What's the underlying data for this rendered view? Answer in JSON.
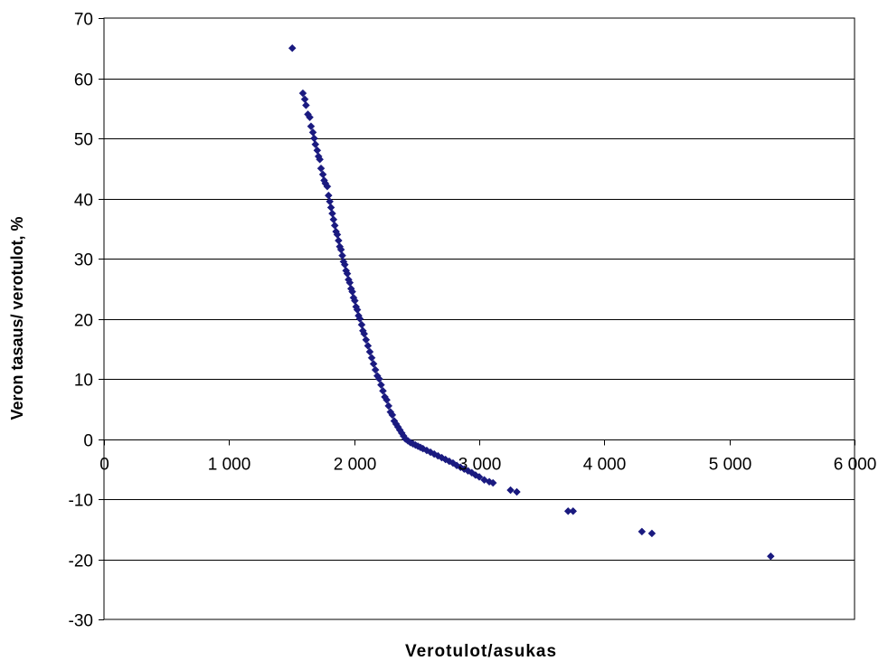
{
  "chart_data": {
    "type": "scatter",
    "title": "",
    "xlabel": "Verotulot/asukas",
    "ylabel": "Veron tasaus/ verotulot, %",
    "xlim": [
      0,
      6000
    ],
    "ylim": [
      -30,
      70
    ],
    "x_ticks": [
      0,
      1000,
      2000,
      3000,
      4000,
      5000,
      6000
    ],
    "x_tick_labels": [
      "0",
      "1 000",
      "2 000",
      "3 000",
      "4 000",
      "5 000",
      "6 000"
    ],
    "y_ticks": [
      -30,
      -20,
      -10,
      0,
      10,
      20,
      30,
      40,
      50,
      60,
      70
    ],
    "y_tick_labels": [
      "-30",
      "-20",
      "-10",
      "0",
      "10",
      "20",
      "30",
      "40",
      "50",
      "60",
      "70"
    ],
    "grid": "horizontal",
    "legend": "none",
    "marker": "diamond",
    "marker_color": "#1a1a80",
    "x_axis_crosses_at": 0,
    "series": [
      {
        "values": [
          [
            1505,
            65.0
          ],
          [
            1590,
            57.5
          ],
          [
            1605,
            56.5
          ],
          [
            1615,
            55.5
          ],
          [
            1630,
            54.0
          ],
          [
            1645,
            53.5
          ],
          [
            1655,
            52.0
          ],
          [
            1670,
            51.0
          ],
          [
            1680,
            50.0
          ],
          [
            1690,
            49.0
          ],
          [
            1705,
            48.0
          ],
          [
            1715,
            47.0
          ],
          [
            1725,
            46.5
          ],
          [
            1735,
            45.0
          ],
          [
            1750,
            44.0
          ],
          [
            1760,
            43.0
          ],
          [
            1770,
            42.5
          ],
          [
            1785,
            42.0
          ],
          [
            1795,
            40.5
          ],
          [
            1805,
            39.5
          ],
          [
            1815,
            38.5
          ],
          [
            1825,
            37.5
          ],
          [
            1835,
            36.5
          ],
          [
            1845,
            35.5
          ],
          [
            1855,
            34.5
          ],
          [
            1865,
            34.0
          ],
          [
            1875,
            33.0
          ],
          [
            1885,
            32.0
          ],
          [
            1895,
            31.5
          ],
          [
            1905,
            30.5
          ],
          [
            1915,
            29.5
          ],
          [
            1925,
            29.0
          ],
          [
            1935,
            28.0
          ],
          [
            1945,
            27.5
          ],
          [
            1955,
            26.5
          ],
          [
            1965,
            26.0
          ],
          [
            1975,
            25.0
          ],
          [
            1985,
            24.5
          ],
          [
            1995,
            23.5
          ],
          [
            2005,
            23.0
          ],
          [
            2015,
            22.0
          ],
          [
            2025,
            21.5
          ],
          [
            2035,
            20.5
          ],
          [
            2045,
            20.0
          ],
          [
            2060,
            19.0
          ],
          [
            2070,
            18.0
          ],
          [
            2080,
            17.5
          ],
          [
            2095,
            16.5
          ],
          [
            2110,
            15.5
          ],
          [
            2125,
            14.5
          ],
          [
            2140,
            13.5
          ],
          [
            2155,
            12.5
          ],
          [
            2170,
            11.5
          ],
          [
            2185,
            10.5
          ],
          [
            2200,
            10.0
          ],
          [
            2215,
            9.0
          ],
          [
            2230,
            8.0
          ],
          [
            2245,
            7.0
          ],
          [
            2260,
            6.5
          ],
          [
            2275,
            5.5
          ],
          [
            2290,
            4.5
          ],
          [
            2305,
            4.0
          ],
          [
            2320,
            3.0
          ],
          [
            2335,
            2.5
          ],
          [
            2350,
            2.0
          ],
          [
            2365,
            1.5
          ],
          [
            2380,
            1.0
          ],
          [
            2395,
            0.5
          ],
          [
            2410,
            0.0
          ],
          [
            2430,
            -0.3
          ],
          [
            2450,
            -0.6
          ],
          [
            2470,
            -0.8
          ],
          [
            2490,
            -1.0
          ],
          [
            2510,
            -1.2
          ],
          [
            2530,
            -1.4
          ],
          [
            2550,
            -1.6
          ],
          [
            2580,
            -1.9
          ],
          [
            2610,
            -2.2
          ],
          [
            2640,
            -2.5
          ],
          [
            2670,
            -2.8
          ],
          [
            2700,
            -3.1
          ],
          [
            2730,
            -3.4
          ],
          [
            2760,
            -3.7
          ],
          [
            2790,
            -4.0
          ],
          [
            2820,
            -4.4
          ],
          [
            2850,
            -4.7
          ],
          [
            2880,
            -5.0
          ],
          [
            2910,
            -5.3
          ],
          [
            2940,
            -5.6
          ],
          [
            2970,
            -6.0
          ],
          [
            3000,
            -6.3
          ],
          [
            3040,
            -6.8
          ],
          [
            3080,
            -7.1
          ],
          [
            3110,
            -7.3
          ],
          [
            3250,
            -8.5
          ],
          [
            3300,
            -8.8
          ],
          [
            3710,
            -12.0
          ],
          [
            3750,
            -12.0
          ],
          [
            4300,
            -15.4
          ],
          [
            4380,
            -15.7
          ],
          [
            5330,
            -19.5
          ]
        ]
      }
    ]
  }
}
